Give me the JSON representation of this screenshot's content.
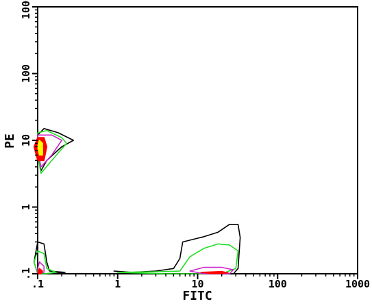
{
  "chart_data": {
    "type": "contour",
    "xlabel": "FITC",
    "ylabel": "PE",
    "x_scale": "log",
    "y_scale": "log",
    "xlim": [
      0.1,
      1000
    ],
    "ylim": [
      0.1,
      1000
    ],
    "x_ticks": [
      {
        "value": 0.1,
        "label": ".1"
      },
      {
        "value": 1,
        "label": "1"
      },
      {
        "value": 10,
        "label": "10"
      },
      {
        "value": 100,
        "label": "100"
      },
      {
        "value": 1000,
        "label": "1000"
      }
    ],
    "y_ticks": [
      {
        "value": 0.1,
        "label": ".1"
      },
      {
        "value": 1,
        "label": "1"
      },
      {
        "value": 10,
        "label": "10"
      },
      {
        "value": 100,
        "label": "100"
      },
      {
        "value": 1000,
        "label": "1000"
      }
    ],
    "level_colors": [
      "#000000",
      "#22dd22",
      "#cc22cc",
      "#ff0000",
      "#ffff00"
    ],
    "populations": [
      {
        "levels": [
          {
            "color": "#000000",
            "points": [
              [
                0.1,
                12
              ],
              [
                0.12,
                15
              ],
              [
                0.18,
                13
              ],
              [
                0.28,
                10
              ],
              [
                0.2,
                8
              ],
              [
                0.13,
                5
              ],
              [
                0.11,
                3.5
              ],
              [
                0.1,
                6
              ]
            ]
          },
          {
            "color": "#22dd22",
            "points": [
              [
                0.1,
                13
              ],
              [
                0.13,
                14
              ],
              [
                0.2,
                11
              ],
              [
                0.23,
                9
              ],
              [
                0.15,
                5
              ],
              [
                0.11,
                3.2
              ],
              [
                0.1,
                6
              ]
            ]
          },
          {
            "color": "#cc22cc",
            "points": [
              [
                0.1,
                12
              ],
              [
                0.15,
                12
              ],
              [
                0.2,
                10
              ],
              [
                0.15,
                6
              ],
              [
                0.11,
                4
              ],
              [
                0.1,
                7
              ]
            ]
          },
          {
            "color": "#ff0000",
            "points": [
              [
                0.1,
                11
              ],
              [
                0.12,
                11
              ],
              [
                0.13,
                8
              ],
              [
                0.12,
                5
              ],
              [
                0.1,
                5
              ],
              [
                0.09,
                8
              ]
            ]
          },
          {
            "color": "#ffff00",
            "points": [
              [
                0.105,
                10
              ],
              [
                0.115,
                9
              ],
              [
                0.115,
                6
              ],
              [
                0.105,
                6
              ],
              [
                0.1,
                8
              ]
            ]
          }
        ]
      },
      {
        "levels": [
          {
            "color": "#000000",
            "points": [
              [
                0.1,
                0.3
              ],
              [
                0.12,
                0.28
              ],
              [
                0.13,
                0.15
              ],
              [
                0.14,
                0.11
              ],
              [
                0.22,
                0.105
              ],
              [
                0.14,
                0.1
              ],
              [
                0.1,
                0.1
              ],
              [
                0.09,
                0.15
              ]
            ]
          },
          {
            "color": "#22dd22",
            "points": [
              [
                0.1,
                0.22
              ],
              [
                0.12,
                0.2
              ],
              [
                0.13,
                0.12
              ],
              [
                0.17,
                0.105
              ],
              [
                0.12,
                0.1
              ],
              [
                0.1,
                0.1
              ],
              [
                0.09,
                0.15
              ]
            ]
          },
          {
            "color": "#cc22cc",
            "points": [
              [
                0.105,
                0.15
              ],
              [
                0.12,
                0.13
              ],
              [
                0.12,
                0.105
              ],
              [
                0.1,
                0.1
              ],
              [
                0.1,
                0.12
              ]
            ]
          },
          {
            "color": "#ff0000",
            "points": [
              [
                0.105,
                0.12
              ],
              [
                0.115,
                0.11
              ],
              [
                0.11,
                0.1
              ],
              [
                0.1,
                0.1
              ]
            ]
          }
        ]
      },
      {
        "levels": [
          {
            "color": "#000000",
            "points": [
              [
                0.9,
                0.11
              ],
              [
                1.5,
                0.105
              ],
              [
                3,
                0.11
              ],
              [
                5,
                0.12
              ],
              [
                6,
                0.17
              ],
              [
                6.5,
                0.3
              ],
              [
                9,
                0.33
              ],
              [
                12,
                0.36
              ],
              [
                18,
                0.42
              ],
              [
                25,
                0.55
              ],
              [
                32,
                0.55
              ],
              [
                34,
                0.35
              ],
              [
                32,
                0.12
              ],
              [
                28,
                0.1
              ],
              [
                15,
                0.1
              ],
              [
                5,
                0.1
              ],
              [
                1.5,
                0.1
              ]
            ]
          },
          {
            "color": "#22dd22",
            "points": [
              [
                1,
                0.105
              ],
              [
                3,
                0.107
              ],
              [
                6,
                0.11
              ],
              [
                8,
                0.18
              ],
              [
                12,
                0.24
              ],
              [
                18,
                0.28
              ],
              [
                25,
                0.27
              ],
              [
                32,
                0.22
              ],
              [
                30,
                0.12
              ],
              [
                20,
                0.1
              ],
              [
                10,
                0.1
              ],
              [
                4,
                0.1
              ]
            ]
          },
          {
            "color": "#cc22cc",
            "points": [
              [
                8,
                0.11
              ],
              [
                12,
                0.125
              ],
              [
                20,
                0.125
              ],
              [
                28,
                0.115
              ],
              [
                25,
                0.1
              ],
              [
                12,
                0.1
              ]
            ]
          },
          {
            "color": "#ff0000",
            "points": [
              [
                11,
                0.105
              ],
              [
                20,
                0.108
              ],
              [
                24,
                0.103
              ],
              [
                16,
                0.1
              ]
            ]
          }
        ]
      }
    ]
  }
}
